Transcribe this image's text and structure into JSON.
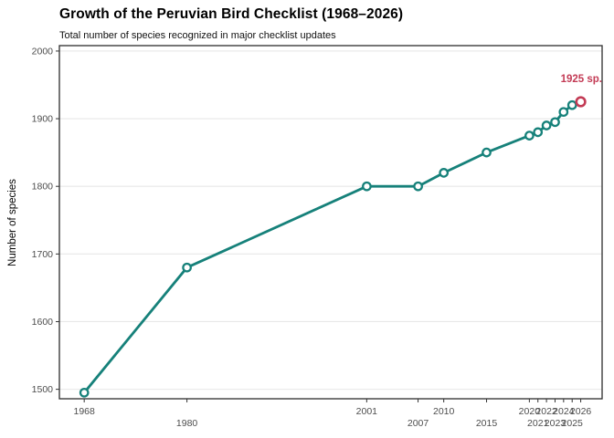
{
  "header": {
    "title": "Growth of the Peruvian Bird Checklist (1968–2026)",
    "subtitle": "Total number of species recognized in major checklist updates"
  },
  "annotation": {
    "text": "1925 sp."
  },
  "colors": {
    "line": "#16817A",
    "point_fill": "#FFFFFF",
    "highlight": "#C33B55",
    "grid": "#E8E8E8",
    "panel_border": "#2D2D2D",
    "axis_text": "#4D4D4D",
    "title_text": "#000000"
  },
  "chart_data": {
    "type": "line",
    "title": "Growth of the Peruvian Bird Checklist (1968–2026)",
    "subtitle": "Total number of species recognized in major checklist updates",
    "xlabel": "",
    "ylabel": "Number of species",
    "x": [
      1968,
      1980,
      2001,
      2007,
      2010,
      2015,
      2020,
      2021,
      2022,
      2023,
      2024,
      2025,
      2026
    ],
    "values": [
      1495,
      1680,
      1800,
      1800,
      1820,
      1850,
      1875,
      1880,
      1890,
      1895,
      1910,
      1920,
      1925
    ],
    "highlight_year": 2026,
    "annotation": {
      "text": "1925 sp.",
      "x": 2026,
      "y": 1925
    },
    "y_ticks": [
      1500,
      1600,
      1700,
      1800,
      1900,
      2000
    ],
    "x_ticks": [
      {
        "label": "1968",
        "row": 0
      },
      {
        "label": "1980",
        "row": 1
      },
      {
        "label": "2001",
        "row": 0
      },
      {
        "label": "2007",
        "row": 1
      },
      {
        "label": "2010",
        "row": 0
      },
      {
        "label": "2015",
        "row": 1
      },
      {
        "label": "2020",
        "row": 0
      },
      {
        "label": "2021",
        "row": 1
      },
      {
        "label": "2022",
        "row": 0
      },
      {
        "label": "2023",
        "row": 1
      },
      {
        "label": "2024",
        "row": 0
      },
      {
        "label": "2025",
        "row": 1
      },
      {
        "label": "2026",
        "row": 0
      }
    ],
    "xlim": [
      1965.1,
      2028.5
    ],
    "ylim": [
      1486,
      2008
    ],
    "grid": "horizontal-major-only",
    "legend": "none"
  }
}
